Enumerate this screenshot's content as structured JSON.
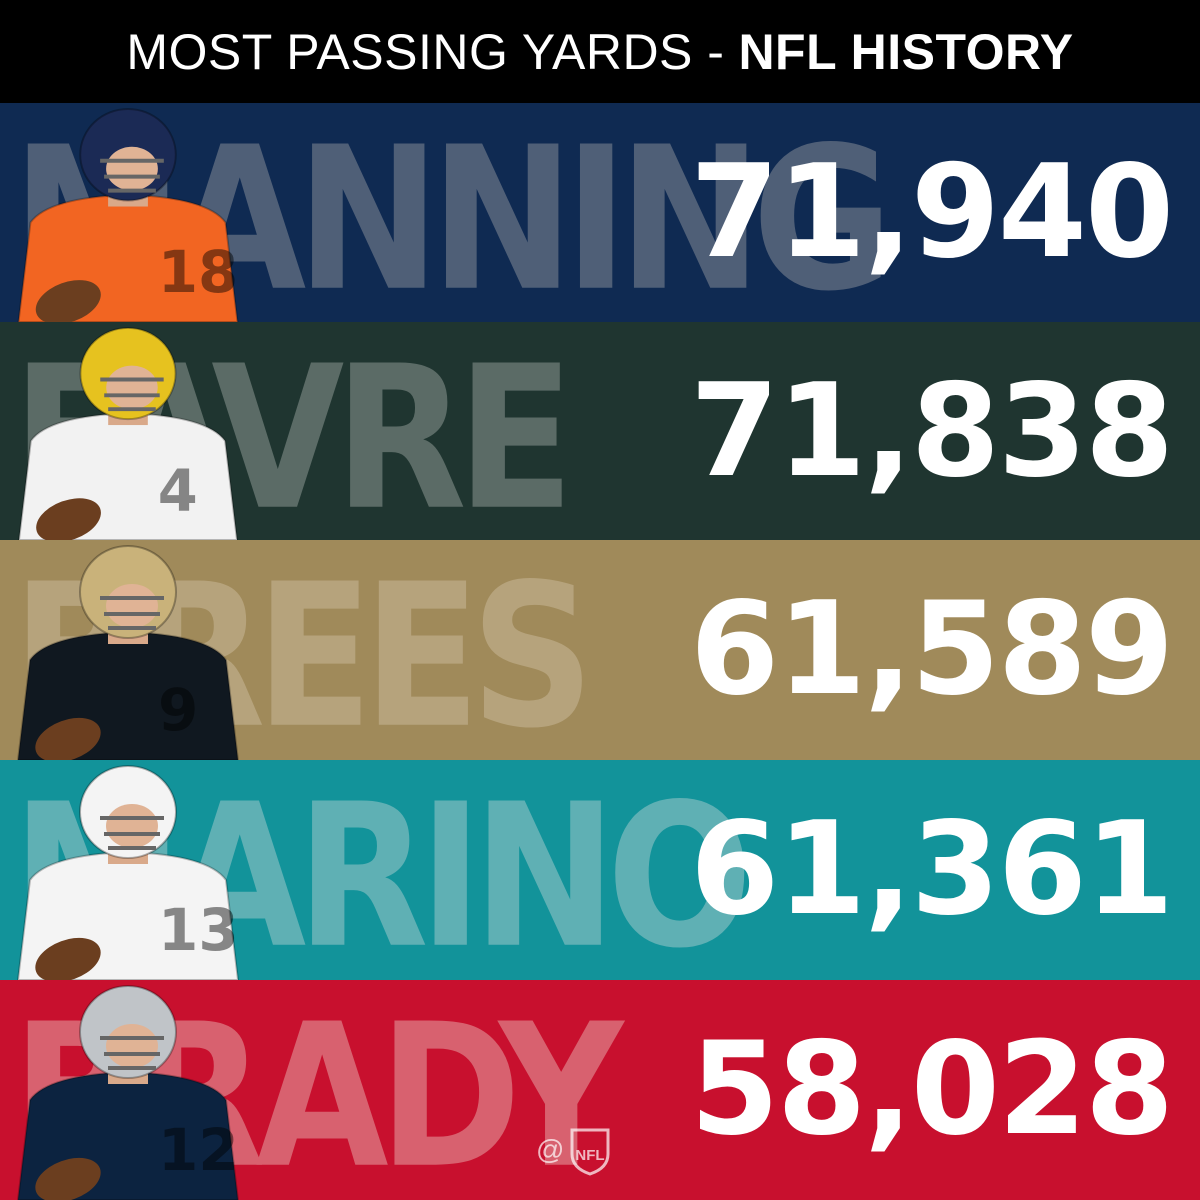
{
  "header": {
    "title_light": "MOST PASSING YARDS -",
    "title_bold": "NFL HISTORY"
  },
  "rows": [
    {
      "name": "MANNING",
      "value": "71,940",
      "bg": "#0f2a52",
      "name_color": "#4f5f77",
      "jersey": "#f26522",
      "helmet": "#1b2a55",
      "number": "18"
    },
    {
      "name": "FAVRE",
      "value": "71,838",
      "bg": "#1f3530",
      "name_color": "#5b6b66",
      "jersey": "#f2f2f2",
      "helmet": "#e6c21f",
      "number": "4"
    },
    {
      "name": "BREES",
      "value": "61,589",
      "bg": "#a08a5a",
      "name_color": "#b6a37c",
      "jersey": "#101820",
      "helmet": "#c9b27a",
      "number": "9"
    },
    {
      "name": "MARINO",
      "value": "61,361",
      "bg": "#12939a",
      "name_color": "#5fb0b4",
      "jersey": "#f4f4f4",
      "helmet": "#f4f4f4",
      "number": "13"
    },
    {
      "name": "BRADY",
      "value": "58,028",
      "bg": "#c8102e",
      "name_color": "#d8616f",
      "jersey": "#0c2340",
      "helmet": "#c0c4c8",
      "number": "12"
    }
  ],
  "watermark": {
    "at": "@",
    "logo": "NFL"
  }
}
